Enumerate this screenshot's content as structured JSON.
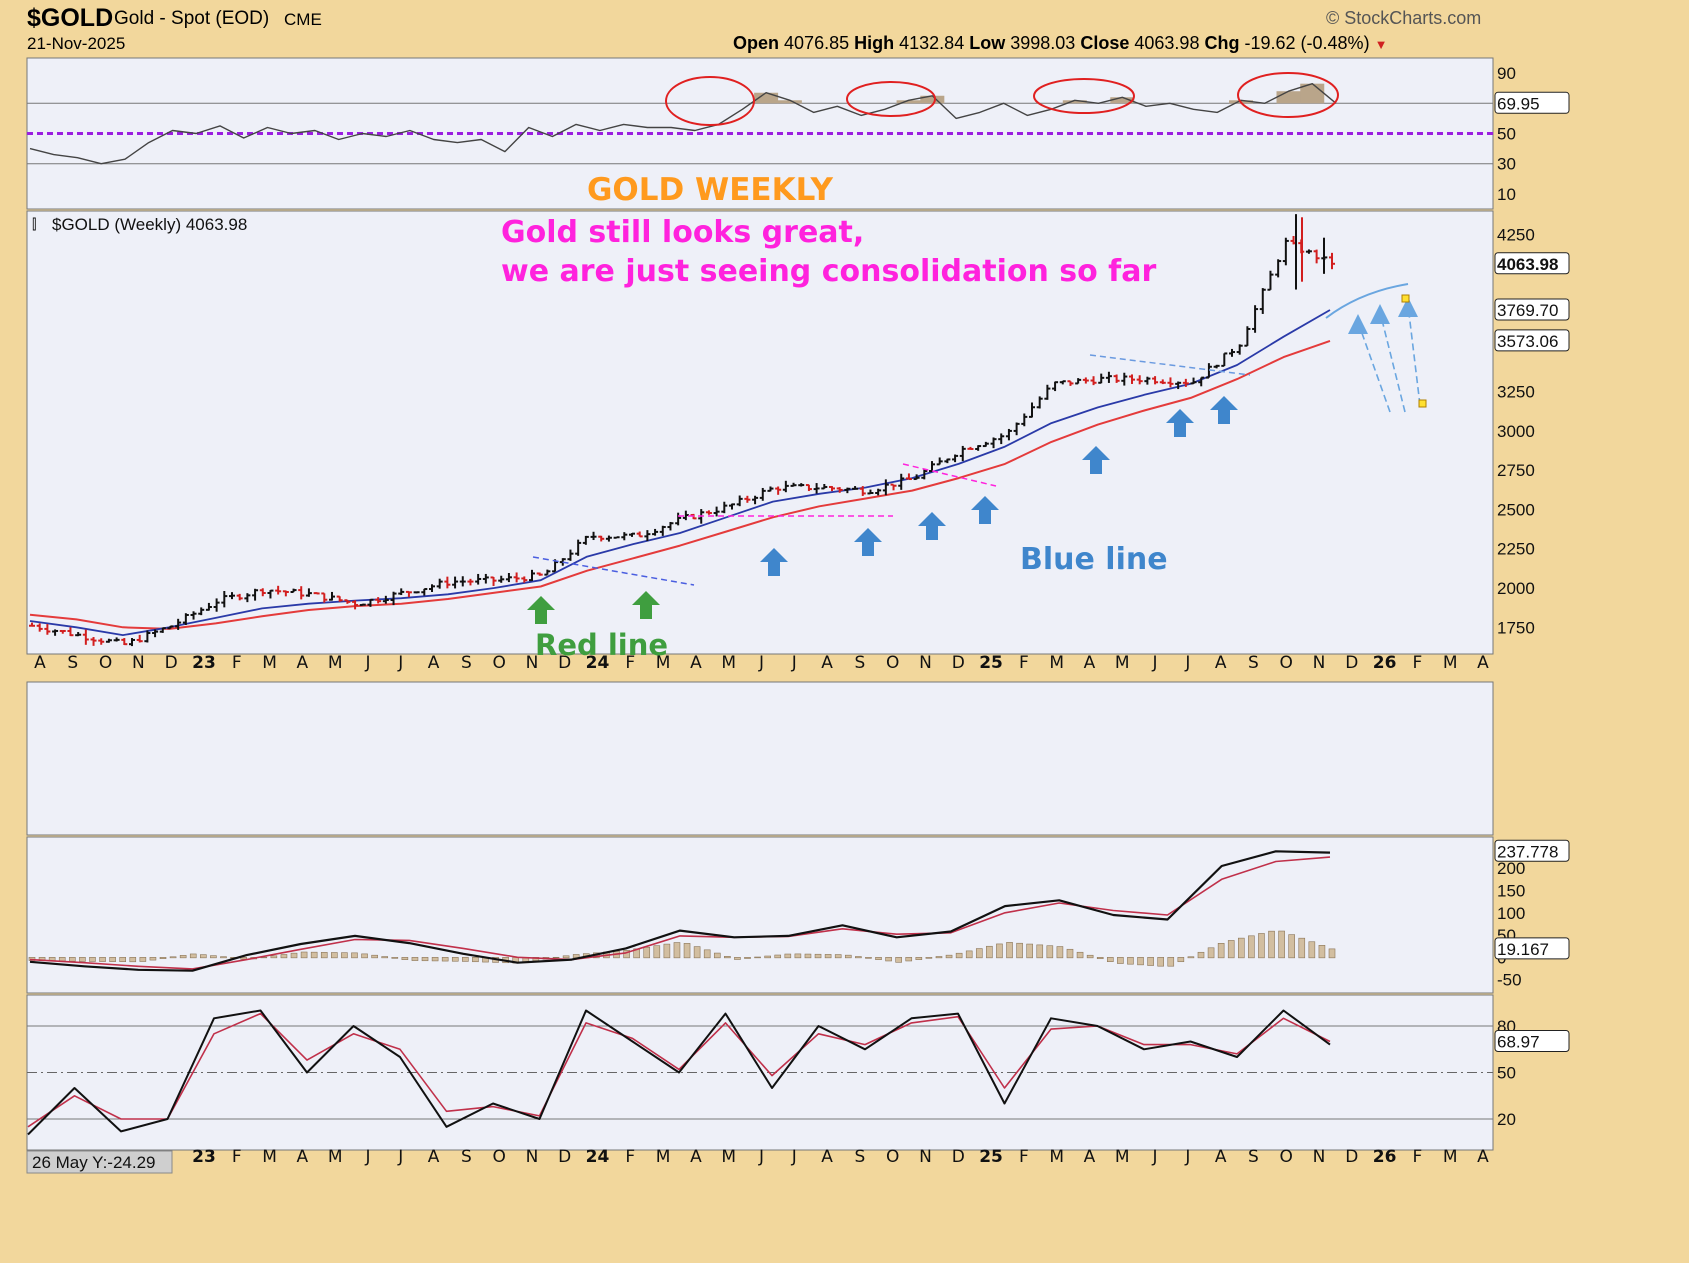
{
  "header": {
    "symbol": "$GOLD",
    "name": "Gold - Spot (EOD)",
    "exchange": "CME",
    "date": "21-Nov-2025",
    "watermark": "© StockCharts.com",
    "open_label": "Open",
    "open": "4076.85",
    "high_label": "High",
    "high": "4132.84",
    "low_label": "Low",
    "low": "3998.03",
    "close_label": "Close",
    "close": "4063.98",
    "chg_label": "Chg",
    "chg": "-19.62 (-0.48%)"
  },
  "annotations": {
    "title": "GOLD WEEKLY",
    "comment_line1": "Gold still looks great,",
    "comment_line2": "we are just seeing consolidation so far",
    "blue_line": "Blue line",
    "red_line": "Red line",
    "price_legend": "$GOLD (Weekly) 4063.98",
    "cursor_readout": "26 May Y:-24.29"
  },
  "colors": {
    "background": "#f2d79c",
    "panel": "#eef0f8",
    "title": "#ff9a1e",
    "comment": "#ff22dd",
    "ma_blue": "#2a3aa8",
    "ma_red": "#e43b3b",
    "blue_arrow": "#3f86cc",
    "green_arrow": "#3f9e3f",
    "rsi_mid": "#9a1ee0"
  },
  "x_axis_labels": [
    "A",
    "S",
    "O",
    "N",
    "D",
    "23",
    "F",
    "M",
    "A",
    "M",
    "J",
    "J",
    "A",
    "S",
    "O",
    "N",
    "D",
    "24",
    "F",
    "M",
    "A",
    "M",
    "J",
    "J",
    "A",
    "S",
    "O",
    "N",
    "D",
    "25",
    "F",
    "M",
    "A",
    "M",
    "J",
    "J",
    "A",
    "S",
    "O",
    "N",
    "D",
    "26",
    "F",
    "M",
    "A"
  ],
  "chart_data": [
    {
      "type": "line",
      "panel": "RSI",
      "ticks": [
        90,
        50,
        30,
        10
      ],
      "ylim": [
        0,
        100
      ],
      "last_value": "69.95",
      "reference_lines": [
        70,
        50,
        30
      ],
      "series": [
        {
          "values": [
            40,
            36,
            34,
            30,
            33,
            44,
            52,
            50,
            55,
            47,
            54,
            50,
            52,
            46,
            50,
            48,
            52,
            46,
            44,
            46,
            38,
            54,
            48,
            56,
            52,
            56,
            54,
            54,
            52,
            56,
            66,
            77,
            72,
            64,
            68,
            62,
            66,
            72,
            75,
            60,
            64,
            70,
            62,
            66,
            72,
            70,
            74,
            68,
            70,
            66,
            64,
            72,
            70,
            78,
            83,
            70
          ]
        }
      ]
    },
    {
      "type": "line",
      "panel": "price",
      "ticks": [
        4250,
        3769.7,
        3573.06,
        3250,
        3000,
        2750,
        2500,
        2250,
        2000,
        1750
      ],
      "ylim": [
        1580,
        4400
      ],
      "last_value": "4063.98",
      "ma_values": [
        "3769.70",
        "3573.06"
      ],
      "x": [
        "Aug-22",
        "Oct-22",
        "Nov-22",
        "Jan-23",
        "Mar-23",
        "May-23",
        "Jul-23",
        "Sep-23",
        "Oct-23",
        "Dec-23",
        "Feb-24",
        "Mar-24",
        "Apr-24",
        "Jun-24",
        "Aug-24",
        "Sep-24",
        "Oct-24",
        "Nov-24",
        "Dec-24",
        "Jan-25",
        "Feb-25",
        "Mar-25",
        "Apr-25",
        "Jun-25",
        "Jul-25",
        "Aug-25",
        "Sep-25",
        "Oct-25",
        "Nov-25"
      ],
      "series": [
        {
          "values": [
            1760,
            1700,
            1640,
            1760,
            1920,
            1990,
            1960,
            1900,
            1970,
            2040,
            2050,
            2080,
            2330,
            2330,
            2440,
            2520,
            2640,
            2640,
            2620,
            2700,
            2880,
            2980,
            3300,
            3330,
            3330,
            3310,
            3550,
            4200,
            4064
          ]
        },
        {
          "values": [
            1790,
            1750,
            1700,
            1750,
            1810,
            1870,
            1900,
            1920,
            1935,
            1960,
            2000,
            2050,
            2200,
            2280,
            2350,
            2450,
            2550,
            2600,
            2640,
            2700,
            2790,
            2900,
            3050,
            3150,
            3230,
            3300,
            3420,
            3600,
            3770
          ]
        },
        {
          "values": [
            1830,
            1800,
            1750,
            1740,
            1775,
            1820,
            1860,
            1885,
            1900,
            1930,
            1970,
            2010,
            2110,
            2190,
            2270,
            2360,
            2450,
            2520,
            2570,
            2620,
            2700,
            2790,
            2930,
            3040,
            3130,
            3210,
            3330,
            3470,
            3573
          ]
        }
      ]
    },
    {
      "type": "line",
      "panel": "MACD",
      "ticks": [
        200,
        150,
        100,
        50,
        0,
        -50
      ],
      "ylim": [
        -80,
        270
      ],
      "last_values": [
        "237.778",
        "19.167"
      ],
      "series": [
        {
          "values": [
            -10,
            -20,
            -28,
            -30,
            5,
            30,
            48,
            32,
            8,
            -12,
            -5,
            20,
            60,
            45,
            48,
            72,
            45,
            58,
            115,
            128,
            95,
            85,
            205,
            238,
            235
          ]
        },
        {
          "values": [
            -5,
            -12,
            -20,
            -26,
            -5,
            18,
            40,
            38,
            20,
            0,
            -5,
            10,
            48,
            45,
            47,
            64,
            52,
            55,
            100,
            122,
            105,
            95,
            175,
            215,
            225
          ]
        },
        {
          "values": [
            -6,
            -8,
            -9,
            8,
            -4,
            12,
            10,
            -6,
            -8,
            -12,
            6,
            16,
            35,
            -4,
            8,
            6,
            -10,
            6,
            34,
            24,
            -12,
            -20,
            34,
            62,
            19
          ]
        }
      ]
    },
    {
      "type": "line",
      "panel": "Stochastic",
      "ticks": [
        80,
        50,
        20
      ],
      "ylim": [
        0,
        100
      ],
      "last_value": "68.97",
      "series": [
        {
          "values": [
            10,
            40,
            12,
            20,
            85,
            90,
            50,
            80,
            60,
            15,
            30,
            20,
            90,
            70,
            50,
            88,
            40,
            80,
            65,
            85,
            88,
            30,
            85,
            80,
            65,
            70,
            60,
            90,
            68
          ]
        },
        {
          "values": [
            15,
            35,
            20,
            20,
            75,
            88,
            58,
            75,
            65,
            25,
            28,
            22,
            82,
            72,
            52,
            82,
            48,
            75,
            68,
            82,
            86,
            40,
            78,
            80,
            68,
            68,
            62,
            85,
            70
          ]
        }
      ]
    }
  ]
}
